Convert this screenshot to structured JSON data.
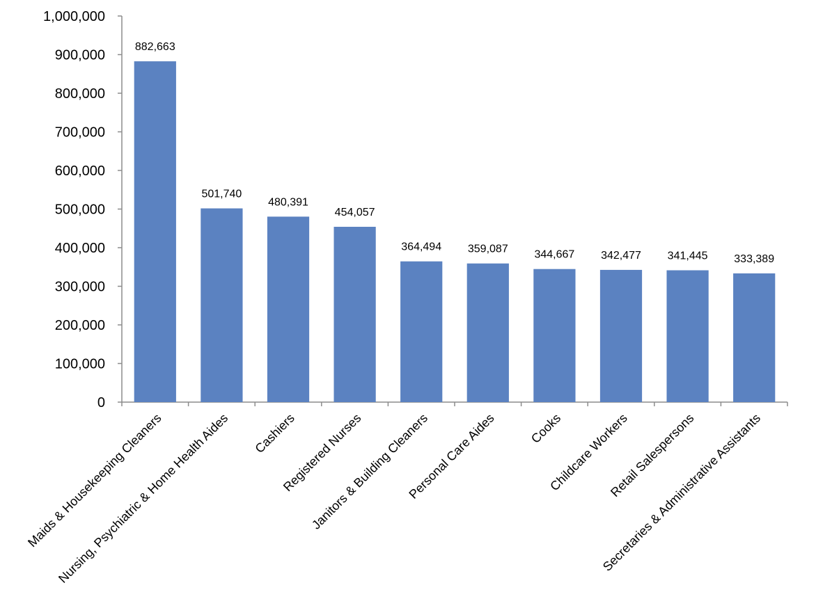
{
  "chart_data": {
    "type": "bar",
    "title": "",
    "xlabel": "",
    "ylabel": "",
    "ylim": [
      0,
      1000000
    ],
    "yticks": [
      0,
      100000,
      200000,
      300000,
      400000,
      500000,
      600000,
      700000,
      800000,
      900000,
      1000000
    ],
    "ytick_labels": [
      "0",
      "100,000",
      "200,000",
      "300,000",
      "400,000",
      "500,000",
      "600,000",
      "700,000",
      "800,000",
      "900,000",
      "1,000,000"
    ],
    "grid": false,
    "legend": "none",
    "bar_color": "#5b82c1",
    "categories": [
      "Maids & Housekeeping Cleaners",
      "Nursing, Psychiatric & Home Health Aides",
      "Cashiers",
      "Registered Nurses",
      "Janitors & Building Cleaners",
      "Personal Care Aides",
      "Cooks",
      "Childcare Workers",
      "Retail Salespersons",
      "Secretaries & Administrative Assistants"
    ],
    "values": [
      882663,
      501740,
      480391,
      454057,
      364494,
      359087,
      344667,
      342477,
      341445,
      333389
    ],
    "data_labels": [
      "882,663",
      "501,740",
      "480,391",
      "454,057",
      "364,494",
      "359,087",
      "344,667",
      "342,477",
      "341,445",
      "333,389"
    ]
  }
}
